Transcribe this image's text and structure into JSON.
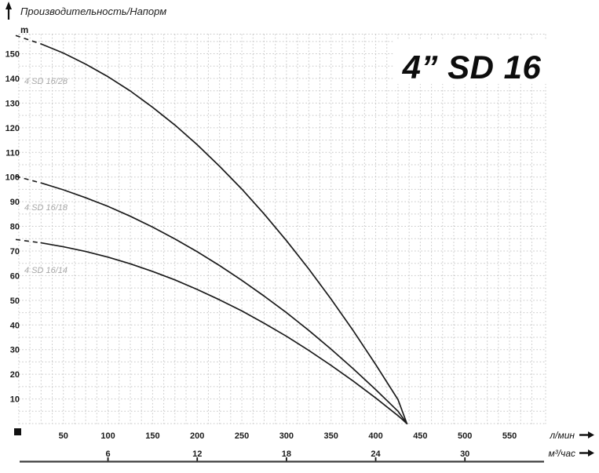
{
  "header": {
    "title": "Производительность/Напорм",
    "y_unit": "m"
  },
  "colors": {
    "curve": "#1b1b1b",
    "grid": "#c7c7c7",
    "curve_label": "#a8a8a8",
    "text": "#1a1a1a",
    "axis_line": "#3c3c3c"
  },
  "chart_data": {
    "type": "line",
    "title": "4” SD 16",
    "ylabel": "m",
    "ylim": [
      0,
      160
    ],
    "y_minor_step": 5,
    "grid": true,
    "y_ticks": [
      10,
      20,
      30,
      40,
      50,
      60,
      70,
      80,
      90,
      100,
      110,
      120,
      130,
      140,
      150
    ],
    "x_primary": {
      "label": "л/мин",
      "lim": [
        0,
        590
      ],
      "minor_step": 12.5,
      "ticks": [
        50,
        100,
        150,
        200,
        250,
        300,
        350,
        400,
        450,
        500,
        550
      ]
    },
    "x_secondary": {
      "label": "м³/час",
      "values": [
        6,
        12,
        18,
        24,
        30
      ],
      "at_lmin": [
        100,
        200,
        300,
        400,
        500
      ]
    },
    "convergence": {
      "q_lmin": 435,
      "h_m": 0
    },
    "series": [
      {
        "name": "4 SD 16/28",
        "dashed_start": true,
        "q_lmin": [
          0,
          25,
          50,
          75,
          100,
          125,
          150,
          175,
          200,
          225,
          250,
          275,
          300,
          325,
          350,
          375,
          400,
          425,
          435
        ],
        "h_m": [
          157,
          154,
          150.3,
          145.8,
          140.7,
          134.9,
          128.3,
          121.1,
          113.1,
          104.4,
          95.1,
          85,
          74.2,
          62.7,
          50.5,
          37.6,
          24,
          9.7,
          0
        ]
      },
      {
        "name": "4 SD 16/18",
        "dashed_start": true,
        "q_lmin": [
          0,
          25,
          50,
          75,
          100,
          125,
          150,
          175,
          200,
          225,
          250,
          275,
          300,
          325,
          350,
          375,
          400,
          425,
          435
        ],
        "h_m": [
          100,
          97.6,
          94.8,
          91.6,
          88.1,
          84.1,
          79.7,
          74.9,
          69.7,
          64.1,
          58.1,
          51.7,
          45,
          37.8,
          30.2,
          22.2,
          13.8,
          5,
          0
        ]
      },
      {
        "name": "4 SD 16/14",
        "dashed_start": true,
        "q_lmin": [
          0,
          25,
          50,
          75,
          100,
          125,
          150,
          175,
          200,
          225,
          250,
          275,
          300,
          325,
          350,
          375,
          400,
          425,
          435
        ],
        "h_m": [
          74.5,
          73.3,
          71.7,
          69.8,
          67.5,
          64.8,
          61.7,
          58.3,
          54.4,
          50.2,
          45.7,
          40.7,
          35.4,
          29.7,
          23.6,
          17.2,
          10.4,
          3.2,
          0
        ]
      }
    ]
  }
}
